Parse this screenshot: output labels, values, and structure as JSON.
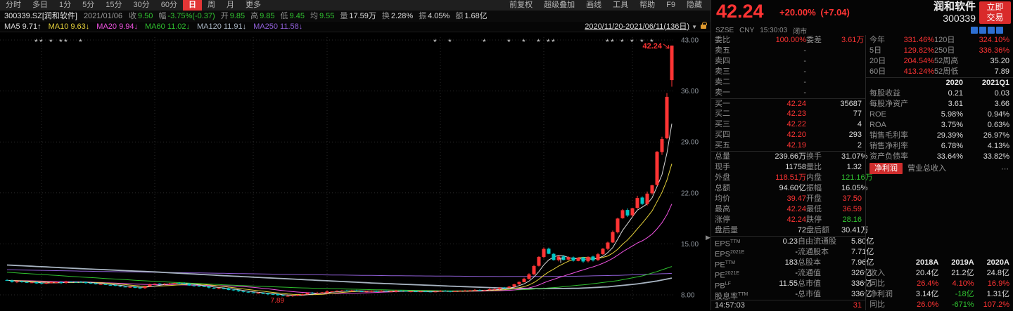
{
  "colors": {
    "up": "#ff3434",
    "down": "#00c6c6"
  },
  "icons": {
    "caret_down": "▼",
    "collapse_arrow": "▶"
  },
  "toolbar": {
    "left_items": [
      "分时",
      "多日",
      "1分",
      "5分",
      "15分",
      "30分",
      "60分",
      "日",
      "周",
      "月",
      "更多"
    ],
    "active_item": "日",
    "right_items": [
      "前复权",
      "超级叠加",
      "画线",
      "工具",
      "帮助",
      "F9",
      "隐藏"
    ]
  },
  "info_bar": {
    "symbol": "300339.SZ[润和软件]",
    "date": "2021/01/06",
    "fields": [
      {
        "label": "收",
        "value": "9.50",
        "color": "g"
      },
      {
        "label": "幅",
        "value": "-3.75%(-0.37)",
        "color": "g"
      },
      {
        "label": "开",
        "value": "9.85",
        "color": "g"
      },
      {
        "label": "高",
        "value": "9.85",
        "color": "g"
      },
      {
        "label": "低",
        "value": "9.45",
        "color": "g"
      },
      {
        "label": "均",
        "value": "9.55",
        "color": "g"
      },
      {
        "label": "量",
        "value": "17.59万",
        "color": "w"
      },
      {
        "label": "换",
        "value": "2.28%",
        "color": "w"
      },
      {
        "label": "振",
        "value": "4.05%",
        "color": "w"
      },
      {
        "label": "额",
        "value": "1.68亿",
        "color": "w"
      }
    ]
  },
  "ma_bar": {
    "items": [
      {
        "label": "MA5",
        "value": "9.71",
        "dir": "up",
        "color": "#d9d9d9"
      },
      {
        "label": "MA10",
        "value": "9.63",
        "dir": "down",
        "color": "#e3cf3a"
      },
      {
        "label": "MA20",
        "value": "9.94",
        "dir": "down",
        "color": "#ef52e0"
      },
      {
        "label": "MA60",
        "value": "11.02",
        "dir": "down",
        "color": "#2fbf2f"
      },
      {
        "label": "MA120",
        "value": "11.91",
        "dir": "down",
        "color": "#a8b4c2"
      },
      {
        "label": "MA250",
        "value": "11.58",
        "dir": "down",
        "color": "#8f5fd6"
      }
    ],
    "range_label": "2020/11/20-2021/06/11(136日)"
  },
  "chart": {
    "type": "candlestick",
    "n": 136,
    "y_ticks": [
      "43.00",
      "36.00",
      "29.00",
      "22.00",
      "15.00",
      "8.00"
    ],
    "y_tick_values": [
      43,
      36,
      29,
      22,
      15,
      8
    ],
    "close_anchors": [
      [
        0,
        9.9
      ],
      [
        7,
        9.6
      ],
      [
        14,
        9.75
      ],
      [
        21,
        9.3
      ],
      [
        27,
        9.0
      ],
      [
        30,
        9.5
      ],
      [
        34,
        9.62
      ],
      [
        38,
        9.2
      ],
      [
        44,
        8.8
      ],
      [
        50,
        8.3
      ],
      [
        55,
        7.95
      ],
      [
        57,
        7.89
      ],
      [
        62,
        8.3
      ],
      [
        68,
        8.62
      ],
      [
        74,
        8.5
      ],
      [
        80,
        8.56
      ],
      [
        86,
        8.45
      ],
      [
        92,
        8.5
      ],
      [
        96,
        8.65
      ],
      [
        100,
        8.9
      ],
      [
        102,
        9.2
      ],
      [
        104,
        9.7
      ],
      [
        106,
        10.8
      ],
      [
        107,
        11.9
      ],
      [
        108,
        13.1
      ],
      [
        109,
        14.4
      ],
      [
        110,
        13.6
      ],
      [
        111,
        12.9
      ],
      [
        112,
        13.4
      ],
      [
        113,
        12.8
      ],
      [
        114,
        13.2
      ],
      [
        115,
        12.7
      ],
      [
        116,
        13.0
      ],
      [
        117,
        12.6
      ],
      [
        118,
        13.1
      ],
      [
        119,
        12.8
      ],
      [
        120,
        13.5
      ],
      [
        121,
        14.2
      ],
      [
        122,
        15.3
      ],
      [
        123,
        16.8
      ],
      [
        124,
        18.4
      ],
      [
        125,
        19.7
      ],
      [
        126,
        18.9
      ],
      [
        127,
        19.9
      ],
      [
        128,
        21.3
      ],
      [
        129,
        20.5
      ],
      [
        130,
        21.9
      ],
      [
        131,
        23.04
      ],
      [
        132,
        27.65
      ],
      [
        133,
        29.4
      ],
      [
        134,
        35.2
      ],
      [
        135,
        42.24
      ]
    ],
    "ma60_anchors": [
      [
        0,
        11.1
      ],
      [
        15,
        10.45
      ],
      [
        30,
        9.85
      ],
      [
        45,
        9.35
      ],
      [
        60,
        8.95
      ],
      [
        75,
        8.7
      ],
      [
        90,
        8.55
      ],
      [
        100,
        8.6
      ],
      [
        106,
        8.75
      ],
      [
        112,
        9.05
      ],
      [
        118,
        9.45
      ],
      [
        124,
        9.95
      ],
      [
        129,
        10.6
      ],
      [
        132,
        11.2
      ],
      [
        135,
        11.9
      ]
    ],
    "ma120_anchors": [
      [
        0,
        12.1
      ],
      [
        15,
        11.6
      ],
      [
        30,
        11.15
      ],
      [
        45,
        10.6
      ],
      [
        60,
        10.1
      ],
      [
        75,
        9.6
      ],
      [
        90,
        9.2
      ],
      [
        100,
        8.95
      ],
      [
        108,
        8.85
      ],
      [
        116,
        8.9
      ],
      [
        122,
        9.1
      ],
      [
        128,
        9.5
      ],
      [
        132,
        9.9
      ],
      [
        135,
        10.3
      ]
    ],
    "ma250_anchors": [
      [
        0,
        11.45
      ],
      [
        20,
        11.2
      ],
      [
        40,
        11.0
      ],
      [
        60,
        10.78
      ],
      [
        80,
        10.62
      ],
      [
        100,
        10.52
      ],
      [
        115,
        10.55
      ],
      [
        125,
        10.7
      ],
      [
        135,
        10.95
      ]
    ],
    "last_ohlc": {
      "open": 37.5,
      "high": 42.24,
      "low": 36.59,
      "close": 42.24
    },
    "month_grid_days": [
      7,
      30,
      50,
      65,
      88,
      109,
      127
    ],
    "star_days": [
      6,
      7,
      9,
      11,
      12,
      15,
      87,
      90,
      97,
      102,
      105,
      108,
      110,
      111,
      122,
      123,
      125,
      127,
      129,
      131
    ],
    "star_glyph": "*",
    "last_price_label": "42.24",
    "low_label": "7.89",
    "low_day": 57,
    "low_value": 7.89,
    "t_marker_label": "T",
    "t_marker_day": 112,
    "t_marker_price": 12.4,
    "ma_colors": {
      "ma5": "#d9d9d9",
      "ma10": "#e3cf3a",
      "ma20": "#ef52e0",
      "ma60": "#2fbf2f",
      "ma120": "#a8b4c2",
      "ma250": "#8f5fd6"
    }
  },
  "quote": {
    "price": "42.24",
    "change_pct": "+20.00%",
    "change_amt": "(+7.04)",
    "name": "润和软件",
    "code": "300339",
    "trade_button": [
      "立即",
      "交易"
    ],
    "status": {
      "exchange": "SZSE",
      "currency": "CNY",
      "time": "15:30:03",
      "state": "闭市"
    },
    "badge_colors": [
      "#2d6fd2",
      "#2d6fd2",
      "#2d6fd2",
      "#2d6fd2"
    ],
    "weibi": {
      "label": "委比",
      "value": "100.00%",
      "label2": "委差",
      "value2": "3.61万"
    },
    "asks": [
      {
        "label": "卖五",
        "price": "-",
        "vol": ""
      },
      {
        "label": "卖四",
        "price": "-",
        "vol": ""
      },
      {
        "label": "卖三",
        "price": "-",
        "vol": ""
      },
      {
        "label": "卖二",
        "price": "-",
        "vol": ""
      },
      {
        "label": "卖一",
        "price": "-",
        "vol": ""
      }
    ],
    "bids": [
      {
        "label": "买一",
        "price": "42.24",
        "vol": "35687"
      },
      {
        "label": "买二",
        "price": "42.23",
        "vol": "77"
      },
      {
        "label": "买三",
        "price": "42.22",
        "vol": "4"
      },
      {
        "label": "买四",
        "price": "42.20",
        "vol": "293"
      },
      {
        "label": "买五",
        "price": "42.19",
        "vol": "2"
      }
    ],
    "stats": [
      {
        "label": "总量",
        "v1": "239.66万",
        "c1": "w",
        "label2": "换手",
        "v2": "31.07%",
        "c2": "w"
      },
      {
        "label": "现手",
        "v1": "11758",
        "c1": "w",
        "label2": "量比",
        "v2": "1.32",
        "c2": "w"
      },
      {
        "label": "外盘",
        "v1": "118.51万",
        "c1": "r",
        "label2": "内盘",
        "v2": "121.16万",
        "c2": "g"
      },
      {
        "label": "总额",
        "v1": "94.60亿",
        "c1": "w",
        "label2": "振幅",
        "v2": "16.05%",
        "c2": "w"
      },
      {
        "label": "均价",
        "v1": "39.47",
        "c1": "r",
        "label2": "开盘",
        "v2": "37.50",
        "c2": "r"
      },
      {
        "label": "最高",
        "v1": "42.24",
        "c1": "r",
        "label2": "最低",
        "v2": "36.59",
        "c2": "r"
      },
      {
        "label": "涨停",
        "v1": "42.24",
        "c1": "r",
        "label2": "跌停",
        "v2": "28.16",
        "c2": "g"
      },
      {
        "label": "盘后量",
        "v1": "72",
        "c1": "w",
        "label2": "盘后额",
        "v2": "30.41万",
        "c2": "w"
      }
    ],
    "valuation": [
      {
        "main": "EPS",
        "sup": "TTM",
        "value": "0.23",
        "label2": "自由流通股",
        "value2": "5.80亿"
      },
      {
        "main": "EPS",
        "sup": "2021E",
        "value": "-",
        "label2": "流通股本",
        "value2": "7.71亿"
      },
      {
        "main": "PE",
        "sup": "TTM",
        "value": "183",
        "label2": "总股本",
        "value2": "7.96亿"
      },
      {
        "main": "PE",
        "sup": "2021E",
        "value": "-",
        "label2": "流通值",
        "value2": "326亿"
      },
      {
        "main": "PB",
        "sup": "LF",
        "value": "11.55",
        "label2": "总市值",
        "value2": "336亿"
      },
      {
        "main": "股息率",
        "sup": "TTM",
        "value": "-",
        "label2": "总市值",
        "value2": "336亿"
      }
    ],
    "perf": [
      {
        "label": "今年",
        "v1": "331.46%",
        "c1": "r",
        "label2": "120日",
        "v2": "324.10%",
        "c2": "r"
      },
      {
        "label": "5日",
        "v1": "129.82%",
        "c1": "r",
        "label2": "250日",
        "v2": "336.36%",
        "c2": "r"
      },
      {
        "label": "20日",
        "v1": "204.54%",
        "c1": "r",
        "label2": "52周高",
        "v2": "35.20",
        "c2": "w"
      },
      {
        "label": "60日",
        "v1": "413.24%",
        "c1": "r",
        "label2": "52周低",
        "v2": "7.89",
        "c2": "w"
      }
    ],
    "ratio_table": {
      "headers": [
        "2020",
        "2021Q1"
      ],
      "rows": [
        [
          "每股收益",
          "0.21",
          "0.03"
        ],
        [
          "每股净资产",
          "3.61",
          "3.66"
        ],
        [
          "ROE",
          "5.98%",
          "0.94%"
        ],
        [
          "ROA",
          "3.75%",
          "0.63%"
        ],
        [
          "销售毛利率",
          "29.39%",
          "26.97%"
        ],
        [
          "销售净利率",
          "6.78%",
          "4.13%"
        ],
        [
          "资产负债率",
          "33.64%",
          "33.82%"
        ]
      ]
    },
    "tabs": {
      "active": "净利润",
      "other": "营业总收入",
      "more": "⋯"
    },
    "fin_table": {
      "headers": [
        "2018A",
        "2019A",
        "2020A"
      ],
      "rows": [
        {
          "label": "收入",
          "values": [
            "20.4亿",
            "21.2亿",
            "24.8亿"
          ],
          "colors": [
            "w",
            "w",
            "w"
          ]
        },
        {
          "label": "同比",
          "values": [
            "26.4%",
            "4.10%",
            "16.9%"
          ],
          "colors": [
            "r",
            "r",
            "r"
          ]
        },
        {
          "label": "净利润",
          "values": [
            "3.14亿",
            "-18亿",
            "1.31亿"
          ],
          "colors": [
            "w",
            "g",
            "w"
          ]
        },
        {
          "label": "同比",
          "values": [
            "26.0%",
            "-671%",
            "107.2%"
          ],
          "colors": [
            "r",
            "g",
            "r"
          ]
        }
      ]
    },
    "tick": {
      "time": "14:57:03",
      "vol": "31"
    }
  }
}
